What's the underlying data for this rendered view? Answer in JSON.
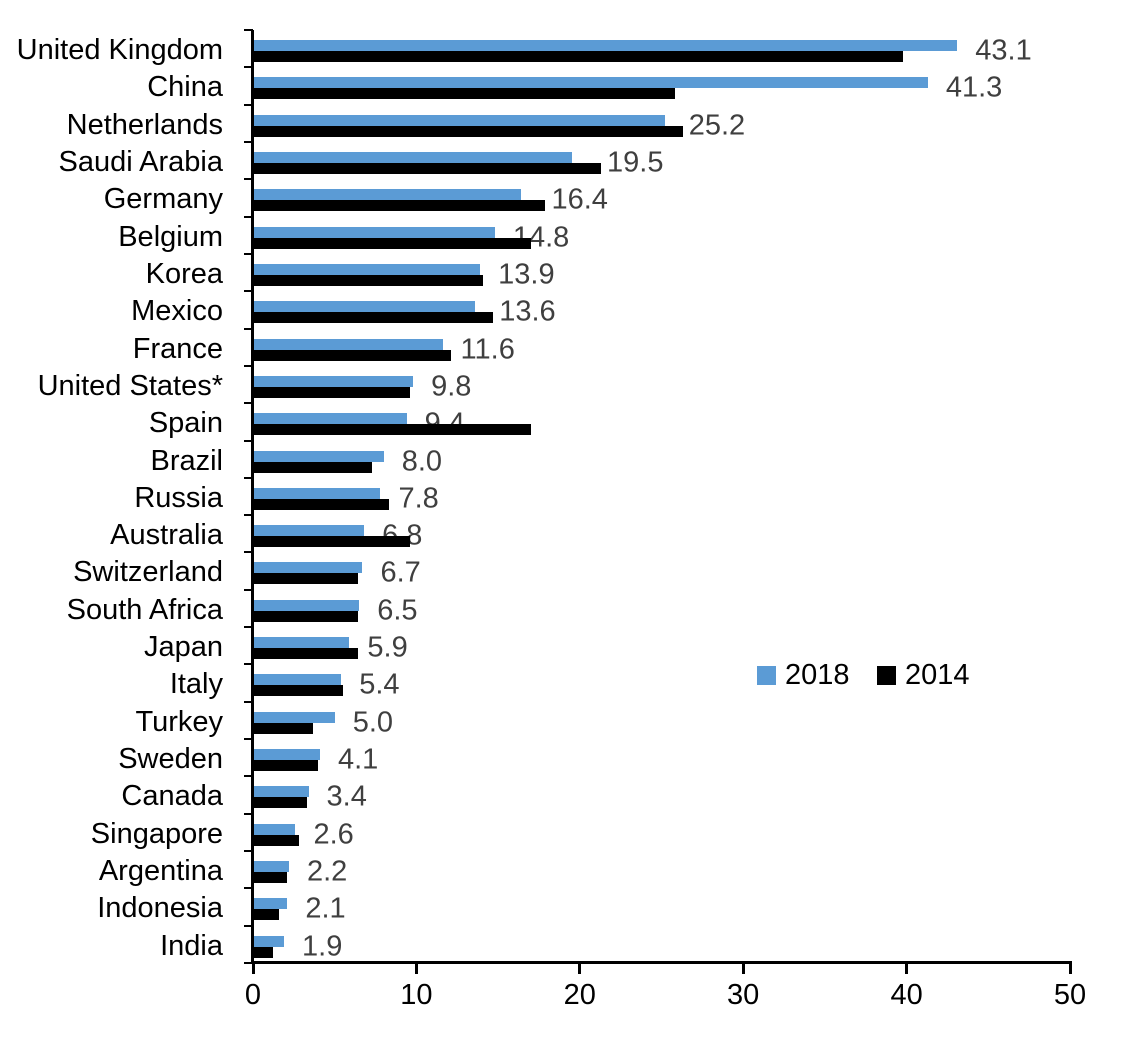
{
  "chart_data": {
    "type": "bar",
    "orientation": "horizontal",
    "title": "",
    "xlabel": "",
    "ylabel": "",
    "xlim": [
      0,
      50
    ],
    "xticks": [
      "0",
      "10",
      "20",
      "30",
      "40",
      "50"
    ],
    "grid": false,
    "legend_position": "center-right",
    "categories": [
      "United Kingdom",
      "China",
      "Netherlands",
      "Saudi Arabia",
      "Germany",
      "Belgium",
      "Korea",
      "Mexico",
      "France",
      "United States*",
      "Spain",
      "Brazil",
      "Russia",
      "Australia",
      "Switzerland",
      "South Africa",
      "Japan",
      "Italy",
      "Turkey",
      "Sweden",
      "Canada",
      "Singapore",
      "Argentina",
      "Indonesia",
      "India"
    ],
    "series": [
      {
        "name": "2018",
        "color": "#5B9BD5",
        "values": [
          43.1,
          41.3,
          25.2,
          19.5,
          16.4,
          14.8,
          13.9,
          13.6,
          11.6,
          9.8,
          9.4,
          8.0,
          7.8,
          6.8,
          6.7,
          6.5,
          5.9,
          5.4,
          5.0,
          4.1,
          3.4,
          2.6,
          2.2,
          2.1,
          1.9
        ]
      },
      {
        "name": "2014",
        "color": "#000000",
        "values": [
          39.8,
          25.8,
          26.3,
          21.3,
          17.9,
          17.0,
          14.1,
          14.7,
          12.1,
          9.6,
          17.0,
          7.3,
          8.3,
          9.6,
          6.4,
          6.4,
          6.4,
          5.5,
          3.7,
          4.0,
          3.3,
          2.8,
          2.1,
          1.6,
          1.2
        ]
      }
    ],
    "value_labels": [
      "43.1",
      "41.3",
      "25.2",
      "19.5",
      "16.4",
      "14.8",
      "13.9",
      "13.6",
      "11.6",
      "9.8",
      "9.4",
      "8.0",
      "7.8",
      "6.8",
      "6.7",
      "6.5",
      "5.9",
      "5.4",
      "5.0",
      "4.1",
      "3.4",
      "2.6",
      "2.2",
      "2.1",
      "1.9"
    ],
    "value_label_series": "2018",
    "colors": {
      "value_label": "#3F3F3F",
      "axis": "#000000",
      "text": "#000000",
      "background": "#FFFFFF"
    }
  }
}
